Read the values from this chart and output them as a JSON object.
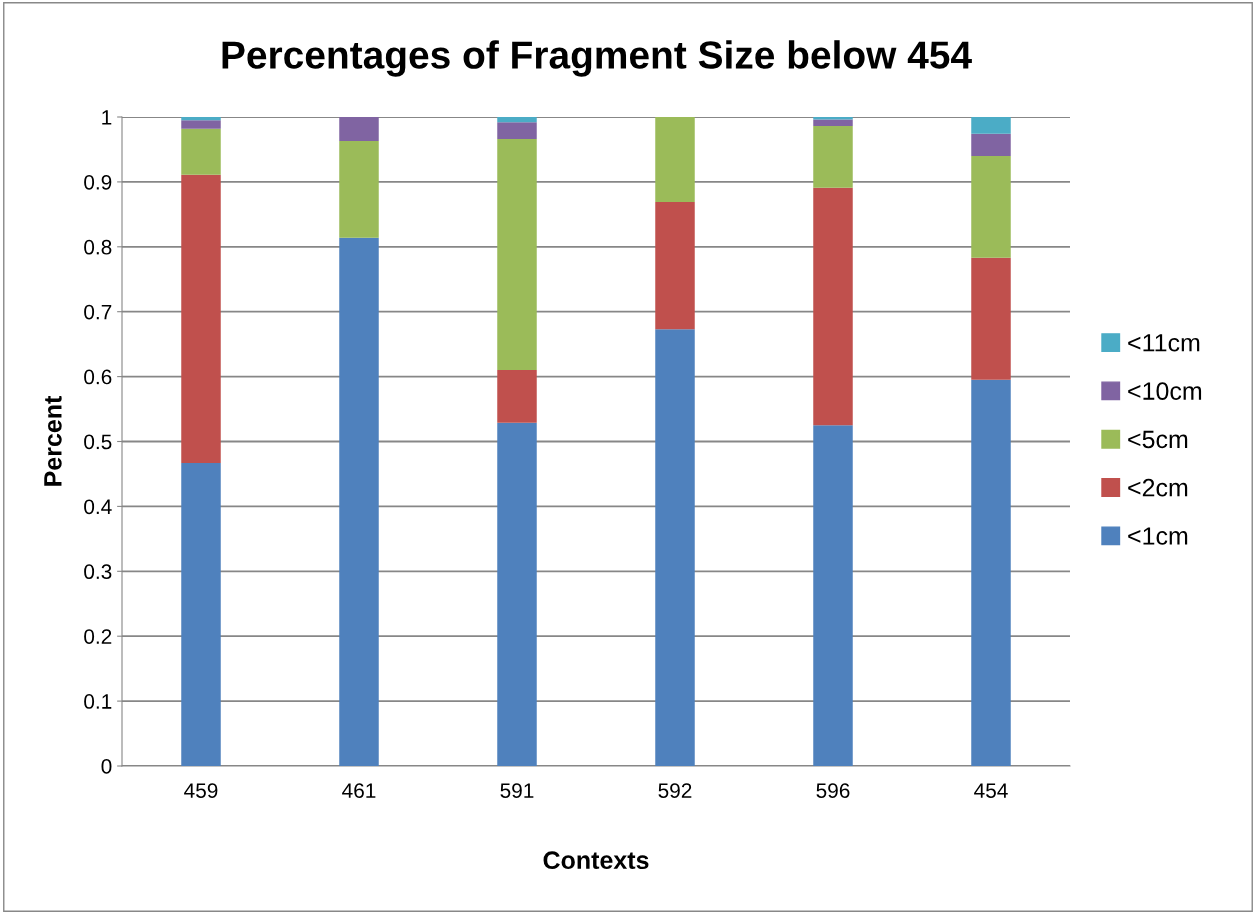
{
  "chart_data": {
    "type": "bar",
    "title": "Percentages of Fragment Size below 454",
    "xlabel": "Contexts",
    "ylabel": "Percent",
    "categories": [
      "459",
      "461",
      "591",
      "592",
      "596",
      "454"
    ],
    "stacked": true,
    "series": [
      {
        "name": "<1cm",
        "color": "#4f81bd",
        "values": [
          0.467,
          0.814,
          0.529,
          0.673,
          0.525,
          0.595
        ]
      },
      {
        "name": "<2cm",
        "color": "#c0504d",
        "values": [
          0.444,
          0,
          0.081,
          0.196,
          0.366,
          0.188
        ]
      },
      {
        "name": "<5cm",
        "color": "#9bbb59",
        "values": [
          0.071,
          0.149,
          0.356,
          0.131,
          0.095,
          0.157
        ]
      },
      {
        "name": "<10cm",
        "color": "#8064a2",
        "values": [
          0.013,
          0.037,
          0.026,
          0,
          0.01,
          0.034
        ]
      },
      {
        "name": "<11cm",
        "color": "#4bacc6",
        "values": [
          0.005,
          0,
          0.008,
          0,
          0.004,
          0.026
        ]
      }
    ],
    "ylim": [
      0,
      1
    ],
    "yticks": [
      0,
      0.1,
      0.2,
      0.3,
      0.4,
      0.5,
      0.6,
      0.7,
      0.8,
      0.9,
      1
    ],
    "grid": "y",
    "legend": "right"
  }
}
